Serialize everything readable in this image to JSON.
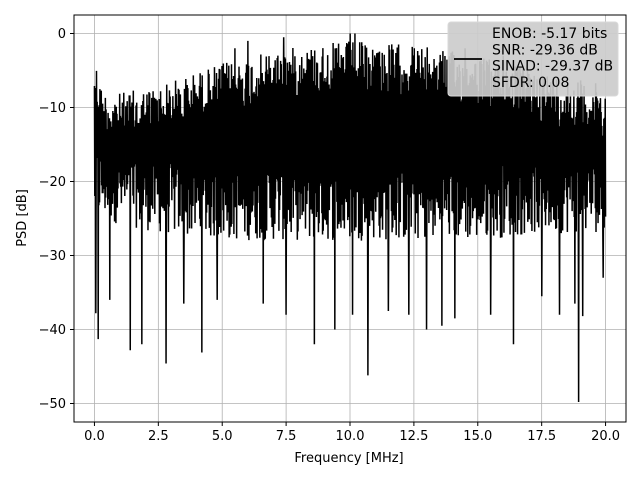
{
  "chart_data": {
    "type": "line",
    "xlabel": "Frequency [MHz]",
    "ylabel": "PSD [dB]",
    "xlim": [
      -0.8,
      20.8
    ],
    "ylim": [
      -52.5,
      2.5
    ],
    "xticks": [
      0.0,
      2.5,
      5.0,
      7.5,
      10.0,
      12.5,
      15.0,
      17.5,
      20.0
    ],
    "xtick_labels": [
      "0.0",
      "2.5",
      "5.0",
      "7.5",
      "10.0",
      "12.5",
      "15.0",
      "17.5",
      "20.0"
    ],
    "yticks": [
      0,
      -10,
      -20,
      -30,
      -40,
      -50
    ],
    "ytick_labels": [
      "0",
      "−10",
      "−20",
      "−30",
      "−40",
      "−50"
    ],
    "grid": true,
    "legend_position": "top-right",
    "legend": [
      {
        "text": "ENOB: -5.17 bits"
      },
      {
        "text": "SNR: -29.36 dB"
      },
      {
        "text": "SINAD: -29.37 dB"
      },
      {
        "text": "SFDR: 0.08"
      }
    ],
    "series": [
      {
        "color": "#000000",
        "x_range": [
          0.0,
          20.0
        ],
        "band_top": [
          [
            0,
            -2.5
          ],
          [
            0.3,
            -7.5
          ],
          [
            1,
            -8
          ],
          [
            2.5,
            -7
          ],
          [
            5,
            -4
          ],
          [
            7.5,
            -2
          ],
          [
            10,
            -1
          ],
          [
            12.5,
            -1.5
          ],
          [
            15,
            -3
          ],
          [
            17.5,
            -5
          ],
          [
            20,
            -7
          ]
        ],
        "band_bottom": [
          [
            0,
            -25
          ],
          [
            2.5,
            -27
          ],
          [
            5,
            -28
          ],
          [
            7.5,
            -28
          ],
          [
            10,
            -28
          ],
          [
            12.5,
            -28
          ],
          [
            15,
            -28
          ],
          [
            17.5,
            -27
          ],
          [
            20,
            -27
          ]
        ],
        "peaks": [
          [
            10.0,
            0.0
          ],
          [
            10.2,
            0.0
          ],
          [
            7.4,
            -0.5
          ],
          [
            12.3,
            -0.2
          ],
          [
            6.0,
            -1.0
          ],
          [
            5.5,
            -2.0
          ],
          [
            14.5,
            -2.0
          ],
          [
            16.0,
            -3.0
          ],
          [
            0.05,
            -2.3
          ]
        ],
        "dips": [
          [
            0.05,
            -37.8
          ],
          [
            0.15,
            -41.3
          ],
          [
            0.6,
            -36.0
          ],
          [
            1.4,
            -42.8
          ],
          [
            1.85,
            -42.0
          ],
          [
            2.8,
            -44.6
          ],
          [
            3.5,
            -36.5
          ],
          [
            4.2,
            -43.1
          ],
          [
            4.8,
            -36.0
          ],
          [
            6.6,
            -36.5
          ],
          [
            7.5,
            -38.0
          ],
          [
            8.6,
            -42.0
          ],
          [
            9.4,
            -40.0
          ],
          [
            10.1,
            -38.0
          ],
          [
            10.7,
            -46.2
          ],
          [
            11.5,
            -37.5
          ],
          [
            12.3,
            -38.0
          ],
          [
            13.0,
            -40.0
          ],
          [
            13.6,
            -39.5
          ],
          [
            14.1,
            -38.5
          ],
          [
            15.5,
            -38.0
          ],
          [
            16.4,
            -42.0
          ],
          [
            17.5,
            -35.5
          ],
          [
            18.2,
            -38.0
          ],
          [
            18.8,
            -36.5
          ],
          [
            18.95,
            -49.8
          ],
          [
            19.1,
            -38.2
          ],
          [
            19.9,
            -33.0
          ]
        ],
        "sample_count": 1500
      }
    ]
  }
}
